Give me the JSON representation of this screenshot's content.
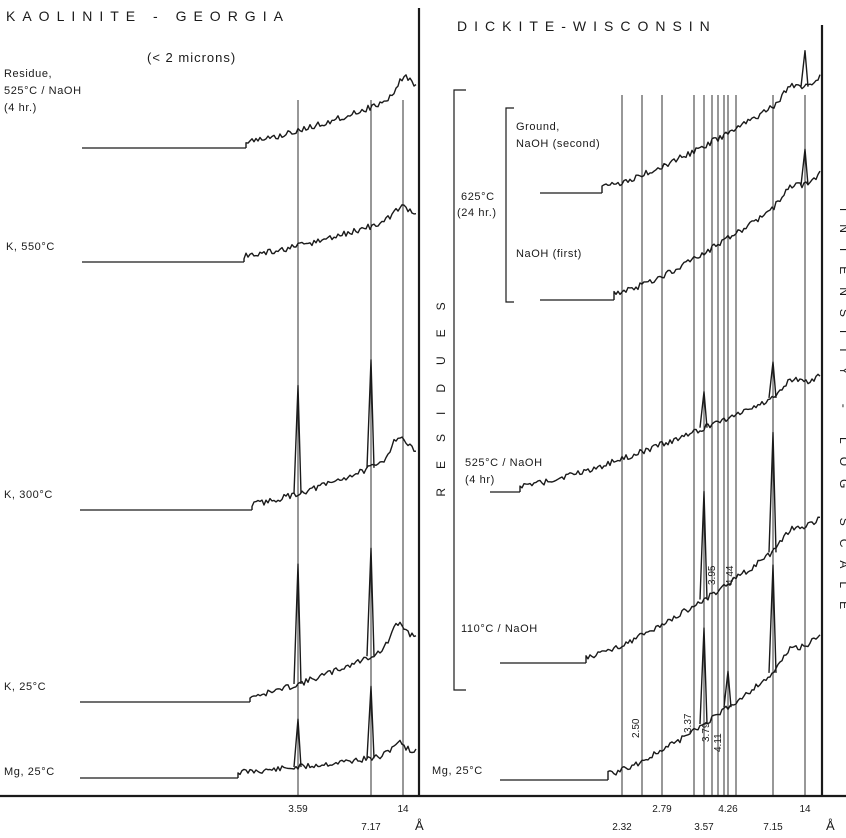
{
  "chart_data": [
    {
      "type": "line",
      "title": "KAOLINITE - GEORGIA",
      "subtitle": "(< 2 microns)",
      "x_unit": "Å",
      "x_ticks": [
        {
          "value": 3.59,
          "label": "3.59"
        },
        {
          "value": 7.17,
          "label": "7.17"
        },
        {
          "value": 14,
          "label": "14"
        }
      ],
      "reference_lines": [
        3.59,
        7.17,
        14
      ],
      "series": [
        {
          "name": "Mg, 25°C",
          "label_lines": [
            "Mg, 25°C"
          ],
          "peaks": [
            {
              "d": 3.59,
              "height": 4
            },
            {
              "d": 7.17,
              "height": 6
            }
          ]
        },
        {
          "name": "K, 25°C",
          "label_lines": [
            "K, 25°C"
          ],
          "peaks": [
            {
              "d": 3.59,
              "height": 10
            },
            {
              "d": 7.17,
              "height": 9
            }
          ]
        },
        {
          "name": "K, 300°C",
          "label_lines": [
            "K, 300°C"
          ],
          "peaks": [
            {
              "d": 3.59,
              "height": 9
            },
            {
              "d": 7.17,
              "height": 9
            }
          ]
        },
        {
          "name": "K, 550°C",
          "label_lines": [
            "K, 550°C"
          ],
          "peaks": []
        },
        {
          "name": "Residue, 525°C / NaOH (4 hr.)",
          "label_lines": [
            "Residue,",
            "525°C / NaOH",
            "(4 hr.)"
          ],
          "peaks": []
        }
      ]
    },
    {
      "type": "line",
      "title": "DICKITE-WISCONSIN",
      "x_unit": "Å",
      "y_axis_label": "INTENSITY - LOG SCALE",
      "group_label": "RESIDUES",
      "group_sublabels": [
        "625°C",
        "(24 hr.)"
      ],
      "x_ticks": [
        {
          "value": 2.32,
          "label": "2.32"
        },
        {
          "value": 2.79,
          "label": "2.79"
        },
        {
          "value": 3.57,
          "label": "3.57"
        },
        {
          "value": 4.26,
          "label": "4.26"
        },
        {
          "value": 7.15,
          "label": "7.15"
        },
        {
          "value": 14,
          "label": "14"
        }
      ],
      "peak_annotations": [
        {
          "value": 2.5,
          "label": "2.50"
        },
        {
          "value": 3.37,
          "label": "3.37"
        },
        {
          "value": 3.79,
          "label": "3.79"
        },
        {
          "value": 3.95,
          "label": "3.95"
        },
        {
          "value": 4.11,
          "label": "4.11"
        },
        {
          "value": 4.44,
          "label": "4.44"
        }
      ],
      "reference_lines": [
        2.32,
        2.5,
        2.79,
        3.37,
        3.57,
        3.79,
        3.95,
        4.11,
        4.26,
        4.44,
        7.15,
        14
      ],
      "series": [
        {
          "name": "Mg, 25°C",
          "label_lines": [
            "Mg, 25°C"
          ],
          "peaks": [
            {
              "d": 3.57,
              "height": 8
            },
            {
              "d": 4.26,
              "height": 3
            },
            {
              "d": 7.15,
              "height": 9
            }
          ]
        },
        {
          "name": "110°C / NaOH",
          "label_lines": [
            "110°C / NaOH"
          ],
          "peaks": [
            {
              "d": 3.57,
              "height": 9
            },
            {
              "d": 7.15,
              "height": 10
            }
          ]
        },
        {
          "name": "525°C / NaOH (4 hr)",
          "label_lines": [
            "525°C / NaOH",
            "(4 hr)"
          ],
          "peaks": [
            {
              "d": 3.57,
              "height": 3
            },
            {
              "d": 7.15,
              "height": 3
            }
          ]
        },
        {
          "name": "NaOH (first)",
          "label_lines": [
            "NaOH (first)"
          ],
          "peaks": [
            {
              "d": 14,
              "height": 3
            }
          ]
        },
        {
          "name": "Ground, NaOH (second)",
          "label_lines": [
            "Ground,",
            "NaOH (second)"
          ],
          "peaks": [
            {
              "d": 14,
              "height": 3
            }
          ]
        }
      ]
    }
  ]
}
